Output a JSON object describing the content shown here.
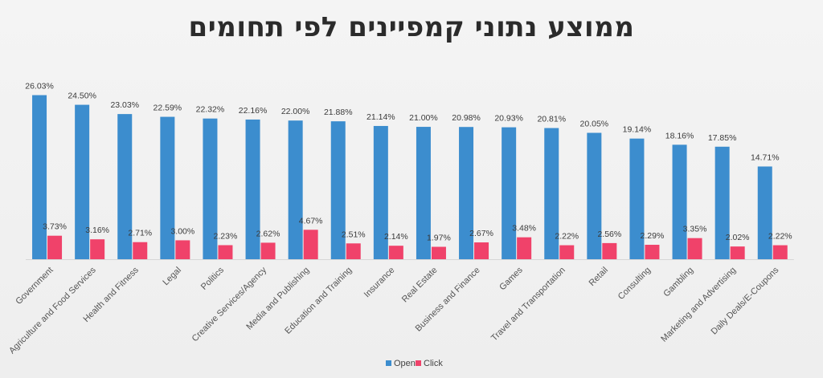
{
  "chart_data": {
    "type": "bar",
    "title": "ממוצע נתוני קמפיינים לפי תחומים",
    "categories": [
      "Government",
      "Agriculture and Food Services",
      "Health and Fitness",
      "Legal",
      "Politics",
      "Creative Services/Agency",
      "Media and Publishing",
      "Education and Training",
      "Insurance",
      "Real Estate",
      "Business and Finance",
      "Games",
      "Travel and Transportation",
      "Retail",
      "Consulting",
      "Gambling",
      "Marketing and Advertising",
      "Daily Deals/E-Coupons"
    ],
    "series": [
      {
        "name": "Open",
        "color": "#3c8dce",
        "values": [
          26.03,
          24.5,
          23.03,
          22.59,
          22.32,
          22.16,
          22.0,
          21.88,
          21.14,
          21.0,
          20.98,
          20.93,
          20.81,
          20.05,
          19.14,
          18.16,
          17.85,
          14.71
        ],
        "labels": [
          "26.03%",
          "24.50%",
          "23.03%",
          "22.59%",
          "22.32%",
          "22.16%",
          "22.00%",
          "21.88%",
          "21.14%",
          "21.00%",
          "20.98%",
          "20.93%",
          "20.81%",
          "20.05%",
          "19.14%",
          "18.16%",
          "17.85%",
          "14.71%"
        ]
      },
      {
        "name": "Click",
        "color": "#f0426a",
        "values": [
          3.73,
          3.16,
          2.71,
          3.0,
          2.23,
          2.62,
          4.67,
          2.51,
          2.14,
          1.97,
          2.67,
          3.48,
          2.22,
          2.56,
          2.29,
          3.35,
          2.02,
          2.22
        ],
        "labels": [
          "3.73%",
          "3.16%",
          "2.71%",
          "3.00%",
          "2.23%",
          "2.62%",
          "4.67%",
          "2.51%",
          "2.14%",
          "1.97%",
          "2.67%",
          "3.48%",
          "2.22%",
          "2.56%",
          "2.29%",
          "3.35%",
          "2.02%",
          "2.22%"
        ]
      }
    ],
    "ylim": [
      0,
      27.5
    ],
    "xlabel": "",
    "ylabel": "",
    "grid": false,
    "legend": "bottom-center"
  }
}
